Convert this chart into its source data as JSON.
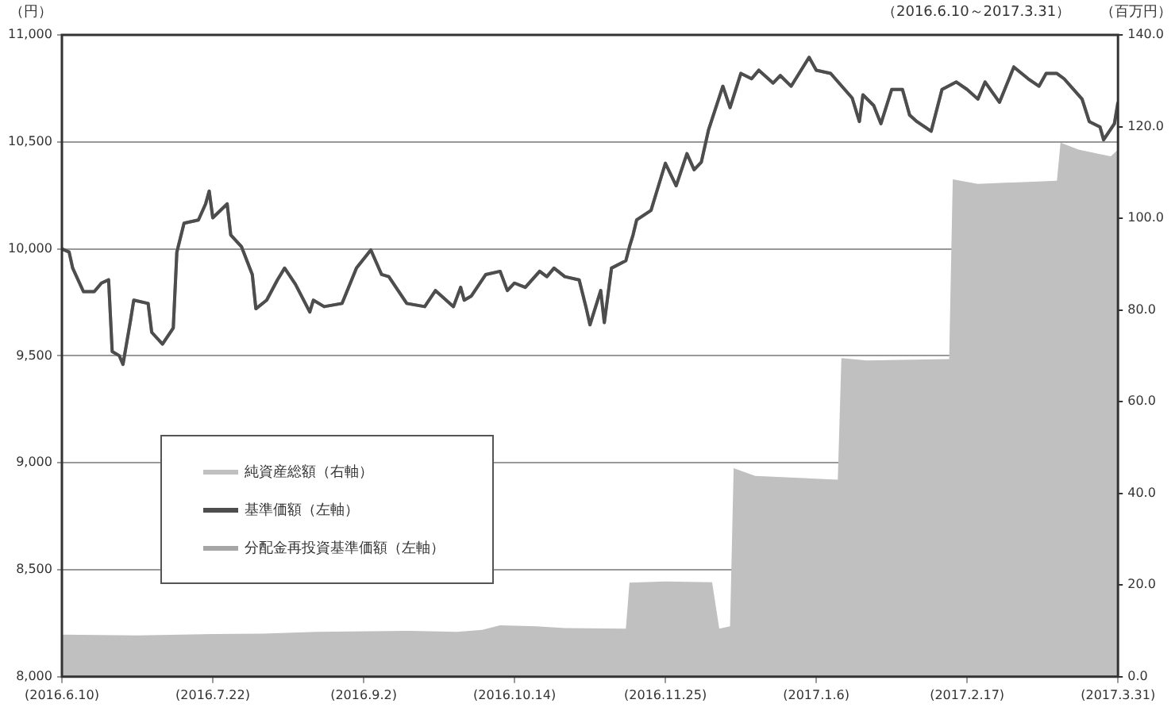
{
  "chart_data": {
    "type": "line",
    "subtitle": "（2016.6.10～2017.3.31）",
    "ylabel": "（円）",
    "y2label": "（百万円）",
    "xlim": [
      "2016-06-10",
      "2017-03-31"
    ],
    "xticks": [
      {
        "value": "2016-06-10",
        "label": "(2016.6.10)"
      },
      {
        "value": "2016-07-22",
        "label": "(2016.7.22)"
      },
      {
        "value": "2016-09-02",
        "label": "(2016.9.2)"
      },
      {
        "value": "2016-10-14",
        "label": "(2016.10.14)"
      },
      {
        "value": "2016-11-25",
        "label": "(2016.11.25)"
      },
      {
        "value": "2017-01-06",
        "label": "(2017.1.6)"
      },
      {
        "value": "2017-02-17",
        "label": "(2017.2.17)"
      },
      {
        "value": "2017-03-31",
        "label": "(2017.3.31)"
      }
    ],
    "ylim": [
      8000,
      11000
    ],
    "yticks": [
      {
        "value": 8000,
        "label": "8,000"
      },
      {
        "value": 8500,
        "label": "8,500"
      },
      {
        "value": 9000,
        "label": "9,000"
      },
      {
        "value": 9500,
        "label": "9,500"
      },
      {
        "value": 10000,
        "label": "10,000"
      },
      {
        "value": 10500,
        "label": "10,500"
      },
      {
        "value": 11000,
        "label": "11,000"
      }
    ],
    "y2lim": [
      0,
      140
    ],
    "y2ticks": [
      {
        "value": 0,
        "label": "0.0"
      },
      {
        "value": 20,
        "label": "20.0"
      },
      {
        "value": 40,
        "label": "40.0"
      },
      {
        "value": 60,
        "label": "60.0"
      },
      {
        "value": 80,
        "label": "80.0"
      },
      {
        "value": 100,
        "label": "100.0"
      },
      {
        "value": 120,
        "label": "120.0"
      },
      {
        "value": 140,
        "label": "140.0"
      }
    ],
    "grid": "y",
    "legend": "bottom left",
    "marker": "none",
    "line_style": "solid",
    "series": [
      {
        "name": "純資産総額（右軸）",
        "type": "area",
        "axis": "y2",
        "color": "#c0c0c0",
        "x": [
          "2016-06-10",
          "2016-07-01",
          "2016-07-22",
          "2016-08-05",
          "2016-08-20",
          "2016-09-15",
          "2016-09-28",
          "2016-10-05",
          "2016-10-10",
          "2016-10-20",
          "2016-10-28",
          "2016-11-14",
          "2016-11-15",
          "2016-11-25",
          "2016-12-08",
          "2016-12-10",
          "2016-12-13",
          "2016-12-14",
          "2016-12-20",
          "2017-01-12",
          "2017-01-13",
          "2017-01-20",
          "2017-02-12",
          "2017-02-13",
          "2017-02-20",
          "2017-03-14",
          "2017-03-15",
          "2017-03-20",
          "2017-03-26",
          "2017-03-29",
          "2017-03-31"
        ],
        "values": [
          9.2,
          9.0,
          9.3,
          9.4,
          9.8,
          10.0,
          9.8,
          10.2,
          11.2,
          11.0,
          10.6,
          10.5,
          20.5,
          20.8,
          20.6,
          10.5,
          11.0,
          45.5,
          43.8,
          43.0,
          69.5,
          69.0,
          69.3,
          108.5,
          107.5,
          108.2,
          116.5,
          115.0,
          114.0,
          113.5,
          115.0
        ]
      },
      {
        "name": "基準価額（左軸）",
        "color": "#4d4d4d",
        "x": [
          "2016-06-10",
          "2016-06-12",
          "2016-06-13",
          "2016-06-16",
          "2016-06-19",
          "2016-06-21",
          "2016-06-23",
          "2016-06-24",
          "2016-06-26",
          "2016-06-27",
          "2016-06-29",
          "2016-06-30",
          "2016-07-04",
          "2016-07-05",
          "2016-07-08",
          "2016-07-11",
          "2016-07-12",
          "2016-07-14",
          "2016-07-18",
          "2016-07-20",
          "2016-07-21",
          "2016-07-22",
          "2016-07-26",
          "2016-07-27",
          "2016-07-30",
          "2016-08-02",
          "2016-08-03",
          "2016-08-06",
          "2016-08-09",
          "2016-08-11",
          "2016-08-14",
          "2016-08-18",
          "2016-08-19",
          "2016-08-22",
          "2016-08-27",
          "2016-08-31",
          "2016-09-04",
          "2016-09-07",
          "2016-09-09",
          "2016-09-14",
          "2016-09-19",
          "2016-09-22",
          "2016-09-27",
          "2016-09-29",
          "2016-09-30",
          "2016-10-02",
          "2016-10-06",
          "2016-10-10",
          "2016-10-12",
          "2016-10-14",
          "2016-10-17",
          "2016-10-21",
          "2016-10-23",
          "2016-10-25",
          "2016-10-28",
          "2016-11-01",
          "2016-11-03",
          "2016-11-04",
          "2016-11-07",
          "2016-11-08",
          "2016-11-10",
          "2016-11-14",
          "2016-11-15",
          "2016-11-16",
          "2016-11-17",
          "2016-11-21",
          "2016-11-25",
          "2016-11-28",
          "2016-12-01",
          "2016-12-03",
          "2016-12-05",
          "2016-12-07",
          "2016-12-11",
          "2016-12-13",
          "2016-12-16",
          "2016-12-19",
          "2016-12-21",
          "2016-12-25",
          "2016-12-27",
          "2016-12-30",
          "2017-01-04",
          "2017-01-06",
          "2017-01-10",
          "2017-01-16",
          "2017-01-18",
          "2017-01-19",
          "2017-01-22",
          "2017-01-24",
          "2017-01-27",
          "2017-01-30",
          "2017-02-01",
          "2017-02-03",
          "2017-02-07",
          "2017-02-10",
          "2017-02-14",
          "2017-02-17",
          "2017-02-20",
          "2017-02-22",
          "2017-02-26",
          "2017-03-02",
          "2017-03-06",
          "2017-03-09",
          "2017-03-11",
          "2017-03-14",
          "2017-03-16",
          "2017-03-21",
          "2017-03-23",
          "2017-03-26",
          "2017-03-27",
          "2017-03-30",
          "2017-03-31"
        ],
        "values": [
          10000,
          9985,
          9910,
          9800,
          9800,
          9840,
          9855,
          9520,
          9500,
          9460,
          9655,
          9760,
          9745,
          9610,
          9555,
          9630,
          9985,
          10120,
          10135,
          10210,
          10270,
          10145,
          10210,
          10065,
          10010,
          9880,
          9720,
          9760,
          9855,
          9910,
          9835,
          9705,
          9760,
          9730,
          9745,
          9910,
          9995,
          9880,
          9870,
          9745,
          9730,
          9805,
          9730,
          9820,
          9760,
          9780,
          9880,
          9895,
          9805,
          9840,
          9820,
          9895,
          9870,
          9910,
          9870,
          9855,
          9720,
          9645,
          9805,
          9655,
          9910,
          9945,
          10010,
          10065,
          10135,
          10180,
          10400,
          10295,
          10445,
          10370,
          10405,
          10555,
          10760,
          10660,
          10820,
          10795,
          10835,
          10775,
          10810,
          10760,
          10895,
          10835,
          10820,
          10705,
          10595,
          10720,
          10670,
          10585,
          10745,
          10745,
          10625,
          10595,
          10550,
          10745,
          10780,
          10745,
          10700,
          10780,
          10685,
          10850,
          10795,
          10760,
          10820,
          10820,
          10795,
          10700,
          10595,
          10570,
          10510,
          10585,
          10685
        ]
      },
      {
        "name": "分配金再投資基準価額（左軸）",
        "color": "#a6a6a6",
        "x": [
          "2016-06-10",
          "2016-06-12",
          "2016-06-13",
          "2016-06-16",
          "2016-06-19",
          "2016-06-21",
          "2016-06-23",
          "2016-06-24",
          "2016-06-26",
          "2016-06-27",
          "2016-06-29",
          "2016-06-30",
          "2016-07-04",
          "2016-07-05",
          "2016-07-08",
          "2016-07-11",
          "2016-07-12",
          "2016-07-14",
          "2016-07-18",
          "2016-07-20",
          "2016-07-21",
          "2016-07-22",
          "2016-07-26",
          "2016-07-27",
          "2016-07-30",
          "2016-08-02",
          "2016-08-03",
          "2016-08-06",
          "2016-08-09",
          "2016-08-11",
          "2016-08-14",
          "2016-08-18",
          "2016-08-19",
          "2016-08-22",
          "2016-08-27",
          "2016-08-31",
          "2016-09-04",
          "2016-09-07",
          "2016-09-09",
          "2016-09-14",
          "2016-09-19",
          "2016-09-22",
          "2016-09-27",
          "2016-09-29",
          "2016-09-30",
          "2016-10-02",
          "2016-10-06",
          "2016-10-10",
          "2016-10-12",
          "2016-10-14",
          "2016-10-17",
          "2016-10-21",
          "2016-10-23",
          "2016-10-25",
          "2016-10-28",
          "2016-11-01",
          "2016-11-03",
          "2016-11-04",
          "2016-11-07",
          "2016-11-08",
          "2016-11-10",
          "2016-11-14",
          "2016-11-15",
          "2016-11-16",
          "2016-11-17",
          "2016-11-21",
          "2016-11-25",
          "2016-11-28",
          "2016-12-01",
          "2016-12-03",
          "2016-12-05",
          "2016-12-07",
          "2016-12-11",
          "2016-12-13",
          "2016-12-16",
          "2016-12-19",
          "2016-12-21",
          "2016-12-25",
          "2016-12-27",
          "2016-12-30",
          "2017-01-04",
          "2017-01-06",
          "2017-01-10",
          "2017-01-16",
          "2017-01-18",
          "2017-01-19",
          "2017-01-22",
          "2017-01-24",
          "2017-01-27",
          "2017-01-30",
          "2017-02-01",
          "2017-02-03",
          "2017-02-07",
          "2017-02-10",
          "2017-02-14",
          "2017-02-17",
          "2017-02-20",
          "2017-02-22",
          "2017-02-26",
          "2017-03-02",
          "2017-03-06",
          "2017-03-09",
          "2017-03-11",
          "2017-03-14",
          "2017-03-16",
          "2017-03-21",
          "2017-03-23",
          "2017-03-26",
          "2017-03-27",
          "2017-03-30",
          "2017-03-31"
        ],
        "values": [
          10000,
          9985,
          9910,
          9800,
          9800,
          9840,
          9855,
          9520,
          9500,
          9460,
          9655,
          9760,
          9745,
          9610,
          9555,
          9630,
          9985,
          10120,
          10135,
          10210,
          10270,
          10145,
          10210,
          10065,
          10010,
          9880,
          9720,
          9760,
          9855,
          9910,
          9835,
          9705,
          9760,
          9730,
          9745,
          9910,
          9995,
          9880,
          9870,
          9745,
          9730,
          9805,
          9730,
          9820,
          9760,
          9780,
          9880,
          9895,
          9805,
          9840,
          9820,
          9895,
          9870,
          9910,
          9870,
          9855,
          9720,
          9645,
          9805,
          9655,
          9910,
          9945,
          10010,
          10065,
          10135,
          10180,
          10400,
          10295,
          10445,
          10370,
          10405,
          10555,
          10760,
          10660,
          10820,
          10795,
          10835,
          10775,
          10810,
          10760,
          10895,
          10835,
          10820,
          10705,
          10595,
          10720,
          10670,
          10585,
          10745,
          10745,
          10625,
          10595,
          10550,
          10745,
          10780,
          10745,
          10700,
          10780,
          10685,
          10850,
          10795,
          10760,
          10820,
          10820,
          10795,
          10700,
          10595,
          10570,
          10510,
          10585,
          10685
        ]
      }
    ]
  }
}
